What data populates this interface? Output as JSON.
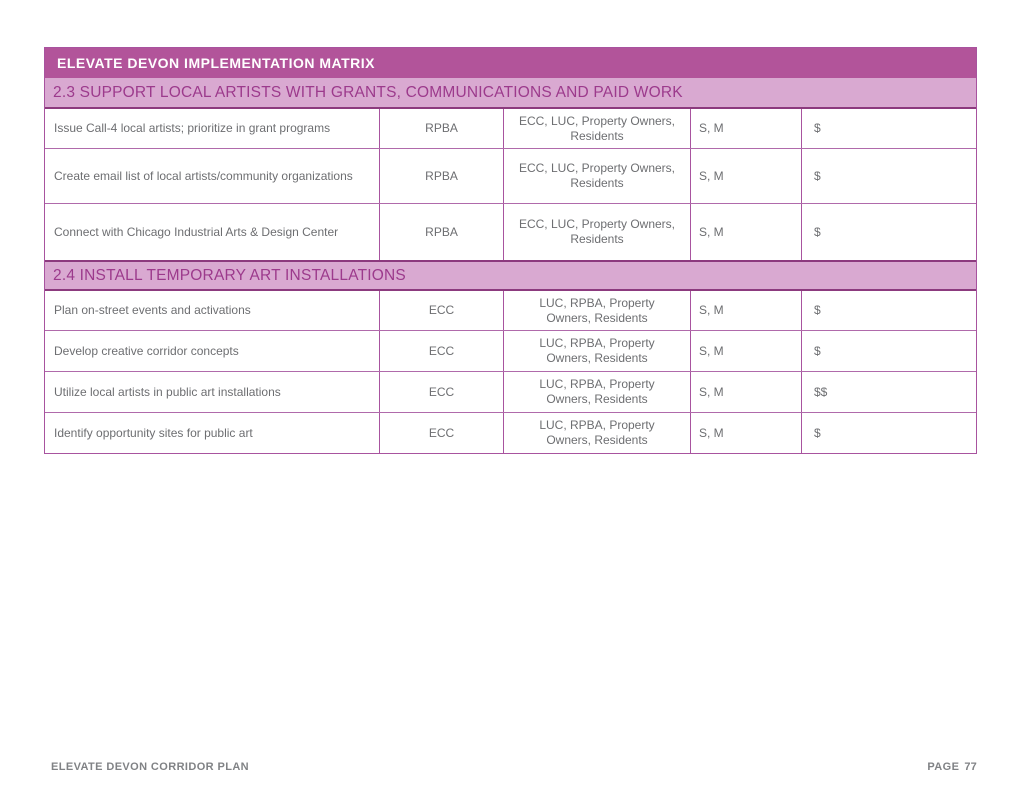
{
  "page": {
    "footer_left": "ELEVATE DEVON CORRIDOR PLAN",
    "footer_page_label": "PAGE",
    "footer_page_number": "77"
  },
  "table": {
    "title": "ELEVATE DEVON IMPLEMENTATION MATRIX",
    "sections": [
      {
        "id": "2-3",
        "heading": "2.3 SUPPORT LOCAL ARTISTS WITH GRANTS, COMMUNICATIONS AND PAID WORK",
        "rows": [
          [
            "Issue Call-4 local artists; prioritize in grant programs",
            "RPBA",
            "ECC, LUC, Property Owners, Residents",
            "S, M",
            "$"
          ],
          [
            "Create email list of local artists/community organizations",
            "RPBA",
            "ECC, LUC, Property Owners, Residents",
            "S, M",
            "$"
          ],
          [
            "Connect with Chicago Industrial Arts & Design Center",
            "RPBA",
            "ECC, LUC, Property Owners, Residents",
            "S, M",
            "$"
          ]
        ]
      },
      {
        "id": "2-4",
        "heading": "2.4 INSTALL TEMPORARY ART INSTALLATIONS",
        "rows": [
          [
            "Plan on-street events and activations",
            "ECC",
            "LUC, RPBA, Property Owners, Residents",
            "S, M",
            "$"
          ],
          [
            "Develop creative corridor concepts",
            "ECC",
            "LUC, RPBA, Property Owners, Residents",
            "S, M",
            "$"
          ],
          [
            "Utilize local artists in public art installations",
            "ECC",
            "LUC, RPBA, Property Owners, Residents",
            "S, M",
            "$$"
          ],
          [
            "Identify opportunity sites for public art",
            "ECC",
            "LUC, RPBA, Property Owners, Residents",
            "S, M",
            "$"
          ]
        ]
      }
    ],
    "column_roles": [
      "task",
      "lead",
      "partners",
      "timeframe",
      "cost"
    ],
    "colors": {
      "title_bar_bg": "#b2549a",
      "section_bar_bg": "#d9a9d1",
      "section_text": "#9c3a8c",
      "cell_border": "#a8539f",
      "dark_divider": "#8c3a7e",
      "body_text": "#6d6e71",
      "footer_text": "#808285"
    }
  }
}
